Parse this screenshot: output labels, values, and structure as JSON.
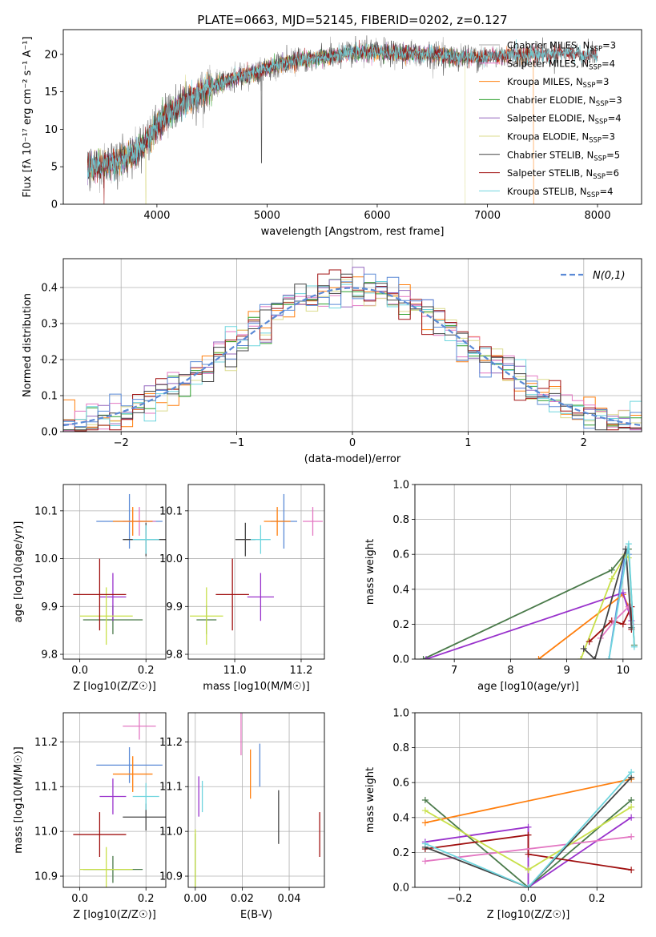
{
  "figure_title": "PLATE=0663, MJD=52145, FIBERID=0202, z=0.127",
  "series_colors": [
    "#aaaaaa",
    "#e377c2",
    "#ff7f0e",
    "#2ca02c",
    "#9467bd",
    "#dbdb8d",
    "#444444",
    "#a01010",
    "#6fd5de"
  ],
  "chart_data": [
    {
      "id": "spectrum",
      "type": "line",
      "title": "PLATE=0663, MJD=52145, FIBERID=0202, z=0.127",
      "xlabel": "wavelength [Angstrom, rest frame]",
      "ylabel": "Flux [fλ 10⁻¹⁷ erg cm⁻² s⁻¹ A⁻¹]",
      "xlim": [
        3150,
        8400
      ],
      "ylim": [
        0,
        23.3
      ],
      "xticks": [
        4000,
        5000,
        6000,
        7000,
        8000
      ],
      "yticks": [
        0,
        5,
        10,
        15,
        20
      ],
      "grid": false,
      "legend_position": "upper-right",
      "continuum": {
        "x": [
          3370,
          3500,
          3600,
          3700,
          3800,
          3900,
          4000,
          4100,
          4200,
          4300,
          4500,
          4700,
          4900,
          5100,
          5300,
          5500,
          5700,
          5900,
          6100,
          6300,
          6500,
          6700,
          6900,
          7100,
          7300,
          7500,
          7700,
          7900,
          8100
        ],
        "y": [
          5.0,
          5.2,
          5.6,
          6.0,
          6.8,
          8.2,
          10.6,
          12.0,
          13.0,
          14.2,
          15.6,
          16.8,
          17.6,
          18.6,
          19.2,
          19.6,
          20.0,
          20.3,
          20.2,
          20.1,
          20.0,
          19.6,
          19.6,
          19.8,
          20.0,
          20.0,
          20.2,
          19.9,
          19.8
        ]
      },
      "series": [
        {
          "name": "Chabrier MILES, N_SSP=3",
          "x_range": [
            3370,
            7250
          ],
          "dips": [
            [
              7250,
              20
            ]
          ]
        },
        {
          "name": "Salpeter MILES, N_SSP=4",
          "x_range": [
            3370,
            7420
          ],
          "dips": []
        },
        {
          "name": "Kroupa MILES, N_SSP=3",
          "x_range": [
            3370,
            7420
          ],
          "dips": [
            [
              7420,
              0
            ]
          ]
        },
        {
          "name": "Chabrier ELODIE, N_SSP=3",
          "x_range": [
            3370,
            6800
          ],
          "dips": []
        },
        {
          "name": "Salpeter ELODIE, N_SSP=4",
          "x_range": [
            3370,
            6800
          ],
          "dips": []
        },
        {
          "name": "Kroupa ELODIE, N_SSP=3",
          "x_range": [
            3370,
            6800
          ],
          "dips": [
            [
              6800,
              0
            ],
            [
              3900,
              0
            ]
          ]
        },
        {
          "name": "Chabrier STELIB, N_SSP=5",
          "x_range": [
            3370,
            8000
          ],
          "dips": [
            [
              4950,
              5.5
            ]
          ]
        },
        {
          "name": "Salpeter STELIB, N_SSP=6",
          "x_range": [
            3370,
            8000
          ],
          "dips": [
            [
              3520,
              0
            ]
          ]
        },
        {
          "name": "Kroupa STELIB, N_SSP=4",
          "x_range": [
            3370,
            8000
          ],
          "dips": []
        }
      ]
    },
    {
      "id": "residuals",
      "type": "histogram",
      "xlabel": "(data-model)/error",
      "ylabel": "Normed distribution",
      "xlim": [
        -2.5,
        2.5
      ],
      "ylim": [
        0,
        0.48
      ],
      "xticks": [
        -2,
        -1,
        0,
        1,
        2
      ],
      "yticks": [
        0.0,
        0.1,
        0.2,
        0.3,
        0.4
      ],
      "grid": true,
      "legend_position": "upper-right",
      "legend": "N(0,1)",
      "bin_edges": [
        -2.5,
        -2.4,
        -2.3,
        -2.2,
        -2.1,
        -2.0,
        -1.9,
        -1.8,
        -1.7,
        -1.6,
        -1.5,
        -1.4,
        -1.3,
        -1.2,
        -1.1,
        -1.0,
        -0.9,
        -0.8,
        -0.7,
        -0.6,
        -0.5,
        -0.4,
        -0.3,
        -0.2,
        -0.1,
        0.0,
        0.1,
        0.2,
        0.3,
        0.4,
        0.5,
        0.6,
        0.7,
        0.8,
        0.9,
        1.0,
        1.1,
        1.2,
        1.3,
        1.4,
        1.5,
        1.6,
        1.7,
        1.8,
        1.9,
        2.0,
        2.1,
        2.2,
        2.3,
        2.4,
        2.5
      ]
    },
    {
      "id": "age-vs-Z",
      "type": "errorbar",
      "xlabel": "Z [log10(Z/Z☉)]",
      "ylabel": "age  [log10(age/yr)]",
      "xlim": [
        -0.05,
        0.26
      ],
      "ylim": [
        9.79,
        10.155
      ],
      "xticks": [
        0.0,
        0.2
      ],
      "yticks": [
        9.8,
        9.9,
        10.0,
        10.1
      ],
      "grid": true
    },
    {
      "id": "age-vs-mass",
      "type": "errorbar",
      "xlabel": "mass [log10(M/M☉)]",
      "ylabel": "",
      "xlim": [
        10.86,
        11.27
      ],
      "ylim": [
        9.79,
        10.155
      ],
      "xticks": [
        11.0,
        11.2
      ],
      "yticks": [
        9.8,
        9.9,
        10.0,
        10.1
      ],
      "grid": true
    },
    {
      "id": "massweight-vs-age",
      "type": "line",
      "xlabel": "age  [log10(age/yr)]",
      "ylabel": "mass weight",
      "xlim": [
        6.3,
        10.33
      ],
      "ylim": [
        0,
        1
      ],
      "xticks": [
        7,
        8,
        9,
        10
      ],
      "yticks": [
        0.0,
        0.2,
        0.4,
        0.6,
        0.8,
        1.0
      ],
      "grid": true
    },
    {
      "id": "mass-vs-Z",
      "type": "errorbar",
      "xlabel": "Z [log10(Z/Z☉)]",
      "ylabel": "mass [log10(M/M☉)]",
      "xlim": [
        -0.05,
        0.26
      ],
      "ylim": [
        10.875,
        11.265
      ],
      "xticks": [
        0.0,
        0.2
      ],
      "yticks": [
        10.9,
        11.0,
        11.1,
        11.2
      ],
      "grid": true
    },
    {
      "id": "mass-vs-EBV",
      "type": "errorbar",
      "xlabel": "E(B-V)",
      "ylabel": "",
      "xlim": [
        -0.003,
        0.055
      ],
      "ylim": [
        10.875,
        11.265
      ],
      "xticks": [
        0.0,
        0.02,
        0.04
      ],
      "yticks": [
        10.9,
        11.0,
        11.1,
        11.2
      ],
      "grid": true
    },
    {
      "id": "massweight-vs-Z",
      "type": "line",
      "xlabel": "Z [log10(Z/Z☉)]",
      "ylabel": "mass weight",
      "xlim": [
        -0.33,
        0.33
      ],
      "ylim": [
        0,
        1
      ],
      "xticks": [
        -0.2,
        0.0,
        0.2
      ],
      "yticks": [
        0.0,
        0.2,
        0.4,
        0.6,
        0.8,
        1.0
      ],
      "grid": true
    }
  ],
  "fits": [
    {
      "name": "Chabrier MILES",
      "color": "#5b8ad6",
      "Z": 0.15,
      "Zerr": 0.1,
      "age": 10.078,
      "ageerr": 0.057,
      "mass": 11.148,
      "masserr": 0.04,
      "ebv": 0.0275,
      "ebverr_mass": 0.048
    },
    {
      "name": "Salpeter MILES",
      "color": "#e377c2",
      "Z": 0.18,
      "Zerr": 0.05,
      "age": 10.078,
      "ageerr": 0.03,
      "mass": 11.235,
      "masserr": 0.03,
      "ebv": 0.0195,
      "ebverr_mass": 0.065
    },
    {
      "name": "Kroupa MILES",
      "color": "#ff7f0e",
      "Z": 0.16,
      "Zerr": 0.06,
      "age": 10.078,
      "ageerr": 0.03,
      "mass": 11.128,
      "masserr": 0.04,
      "ebv": 0.0235,
      "ebverr_mass": 0.055
    },
    {
      "name": "Chabrier ELODIE",
      "color": "#4a7a4a",
      "Z": 0.1,
      "Zerr": 0.09,
      "age": 9.872,
      "ageerr": 0.03,
      "mass": 10.915,
      "masserr": 0.03,
      "ebv": 0.0,
      "ebverr_mass": 0.08
    },
    {
      "name": "Salpeter ELODIE",
      "color": "#9932cc",
      "Z": 0.1,
      "Zerr": 0.04,
      "age": 9.92,
      "ageerr": 0.05,
      "mass": 11.078,
      "masserr": 0.04,
      "ebv": 0.0015,
      "ebverr_mass": 0.045
    },
    {
      "name": "Kroupa ELODIE",
      "color": "#c8e04a",
      "Z": 0.08,
      "Zerr": 0.08,
      "age": 9.88,
      "ageerr": 0.06,
      "mass": 10.915,
      "masserr": 0.05,
      "ebv": 0.0,
      "ebverr_mass": 0.09
    },
    {
      "name": "Chabrier STELIB",
      "color": "#444444",
      "Z": 0.2,
      "Zerr": 0.07,
      "age": 10.04,
      "ageerr": 0.035,
      "mass": 11.032,
      "masserr": 0.03,
      "ebv": 0.0355,
      "ebverr_mass": 0.06
    },
    {
      "name": "Salpeter STELIB",
      "color": "#a01010",
      "Z": 0.06,
      "Zerr": 0.08,
      "age": 9.925,
      "ageerr": 0.075,
      "mass": 10.993,
      "masserr": 0.05,
      "ebv": 0.053,
      "ebverr_mass": 0.05
    },
    {
      "name": "Kroupa STELIB",
      "color": "#6fd5de",
      "Z": 0.2,
      "Zerr": 0.04,
      "age": 10.04,
      "ageerr": 0.03,
      "mass": 11.078,
      "masserr": 0.03,
      "ebv": 0.003,
      "ebverr_mass": 0.035
    }
  ],
  "weights_vs_age": [
    {
      "color": "#4a7a4a",
      "points": [
        [
          6.45,
          0.0
        ],
        [
          9.8,
          0.51
        ],
        [
          10.1,
          0.63
        ],
        [
          10.2,
          0.08
        ]
      ]
    },
    {
      "color": "#5b8ad6",
      "points": [
        [
          9.75,
          0.0
        ],
        [
          10.05,
          0.63
        ],
        [
          10.1,
          0.6
        ]
      ]
    },
    {
      "color": "#ff7f0e",
      "points": [
        [
          8.5,
          0.0
        ],
        [
          10.0,
          0.37
        ],
        [
          10.1,
          0.3
        ]
      ]
    },
    {
      "color": "#9932cc",
      "points": [
        [
          6.5,
          0.0
        ],
        [
          10.0,
          0.38
        ],
        [
          10.15,
          0.22
        ]
      ]
    },
    {
      "color": "#c8e04a",
      "points": [
        [
          9.25,
          0.0
        ],
        [
          9.8,
          0.46
        ],
        [
          10.05,
          0.6
        ],
        [
          10.1,
          0.58
        ]
      ]
    },
    {
      "color": "#a01010",
      "points": [
        [
          9.4,
          0.1
        ],
        [
          9.8,
          0.22
        ],
        [
          10.0,
          0.2
        ],
        [
          10.15,
          0.3
        ],
        [
          10.15,
          0.17
        ]
      ]
    },
    {
      "color": "#e377c2",
      "points": [
        [
          9.6,
          0.12
        ],
        [
          9.85,
          0.22
        ],
        [
          10.1,
          0.3
        ],
        [
          10.15,
          0.2
        ]
      ]
    },
    {
      "color": "#444444",
      "points": [
        [
          9.3,
          0.06
        ],
        [
          9.5,
          0.0
        ],
        [
          10.05,
          0.63
        ],
        [
          10.15,
          0.18
        ]
      ]
    },
    {
      "color": "#6fd5de",
      "points": [
        [
          9.75,
          0.0
        ],
        [
          10.1,
          0.66
        ],
        [
          10.2,
          0.07
        ]
      ]
    }
  ],
  "weights_vs_Z": [
    {
      "color": "#4a7a4a",
      "points": [
        [
          -0.3,
          0.5
        ],
        [
          0.0,
          0.0
        ],
        [
          0.3,
          0.5
        ]
      ]
    },
    {
      "color": "#ff7f0e",
      "points": [
        [
          -0.3,
          0.37
        ],
        [
          0.3,
          0.62
        ]
      ]
    },
    {
      "color": "#9932cc",
      "points": [
        [
          -0.3,
          0.26
        ],
        [
          0.0,
          0.345
        ],
        [
          0.0,
          0.0
        ],
        [
          0.3,
          0.4
        ]
      ]
    },
    {
      "color": "#a01010",
      "points": [
        [
          -0.3,
          0.22
        ],
        [
          0.0,
          0.3
        ],
        [
          0.0,
          0.19
        ],
        [
          0.3,
          0.1
        ]
      ]
    },
    {
      "color": "#e377c2",
      "points": [
        [
          -0.3,
          0.15
        ],
        [
          0.3,
          0.29
        ]
      ]
    },
    {
      "color": "#c8e04a",
      "points": [
        [
          -0.3,
          0.44
        ],
        [
          0.0,
          0.1
        ],
        [
          0.3,
          0.46
        ]
      ]
    },
    {
      "color": "#444444",
      "points": [
        [
          -0.3,
          0.23
        ],
        [
          0.0,
          0.0
        ],
        [
          0.3,
          0.63
        ]
      ]
    },
    {
      "color": "#6fd5de",
      "points": [
        [
          -0.3,
          0.25
        ],
        [
          0.0,
          0.0
        ],
        [
          0.3,
          0.66
        ]
      ]
    }
  ]
}
